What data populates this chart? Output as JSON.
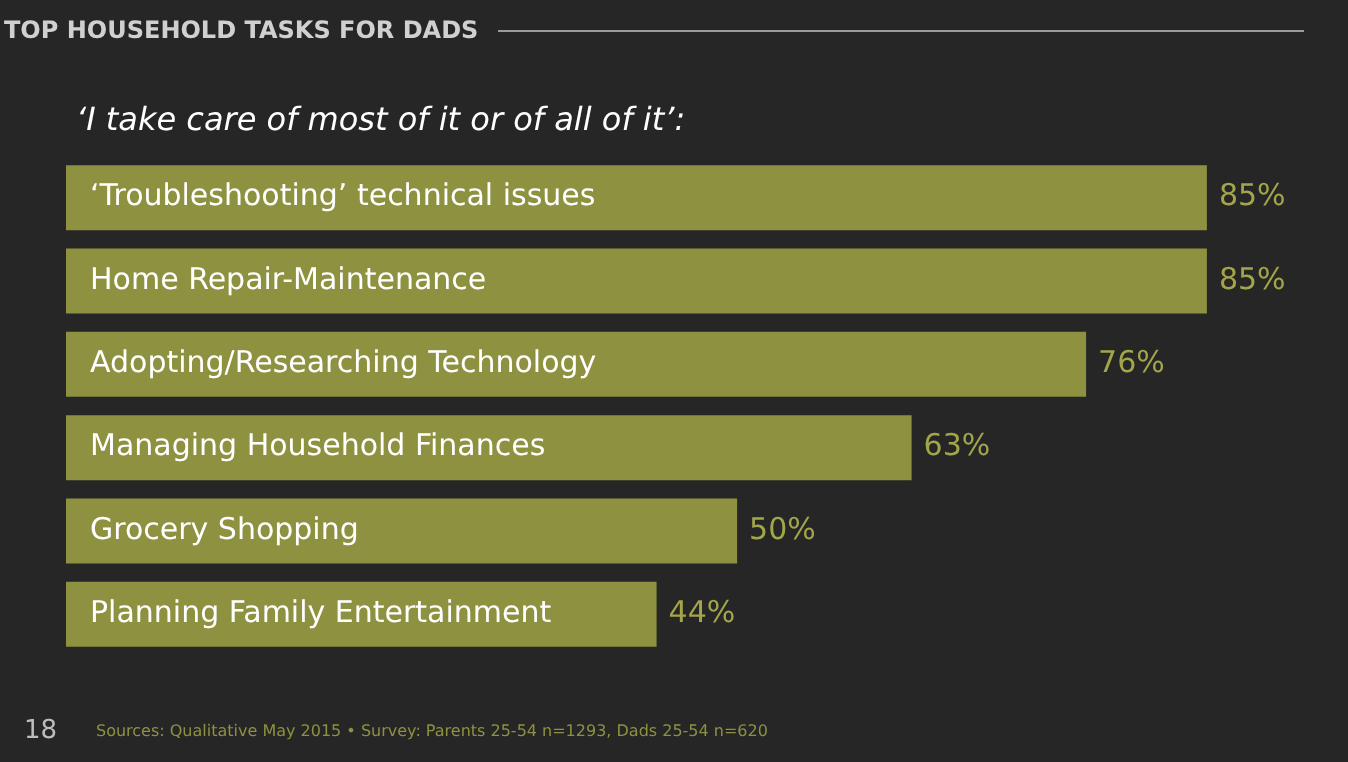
{
  "chart_data": {
    "type": "bar",
    "orientation": "horizontal",
    "title": "TOP HOUSEHOLD TASKS FOR DADS",
    "subtitle": "‘I take care of most of it or of all of it’:",
    "categories": [
      "‘Troubleshooting’ technical issues",
      "Home Repair-Maintenance",
      "Adopting/Researching Technology",
      "Managing Household Finances",
      "Grocery Shopping",
      "Planning Family Entertainment"
    ],
    "values": [
      85,
      85,
      76,
      63,
      50,
      44
    ],
    "color": "#8e9140",
    "value_labels": [
      "85%",
      "85%",
      "76%",
      "63%",
      "50%",
      "44%"
    ],
    "annotations": [
      "18",
      "Sources: Qualitative May 2015 • Survey: Parents 25-54 n=1293, Dads 25-54 n=620"
    ]
  }
}
